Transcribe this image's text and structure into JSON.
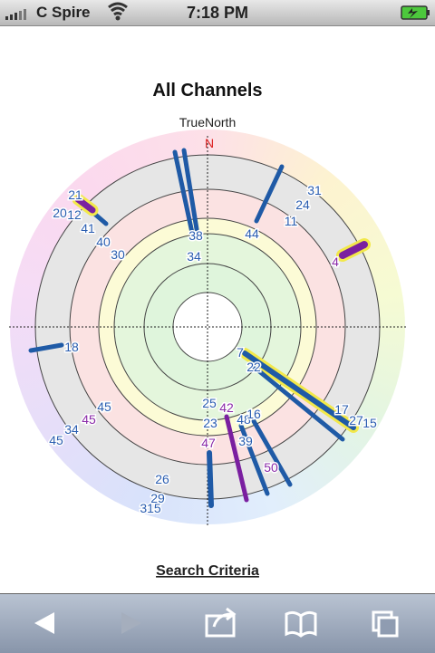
{
  "status_bar": {
    "carrier": "C Spire",
    "time": "7:18 PM"
  },
  "page": {
    "title": "All Channels",
    "compass_label": "TrueNorth",
    "north_marker": "N",
    "link": "Search Criteria"
  },
  "satellites": [
    {
      "label": "21",
      "color": "#2a5db0"
    },
    {
      "label": "12",
      "color": "#2a5db0"
    },
    {
      "label": "20",
      "color": "#2a5db0"
    },
    {
      "label": "41",
      "color": "#2a5db0"
    },
    {
      "label": "40",
      "color": "#2a5db0"
    },
    {
      "label": "30",
      "color": "#2a5db0"
    },
    {
      "label": "38",
      "color": "#2a5db0"
    },
    {
      "label": "34",
      "color": "#2a5db0"
    },
    {
      "label": "44",
      "color": "#2a5db0"
    },
    {
      "label": "31",
      "color": "#2a5db0"
    },
    {
      "label": "24",
      "color": "#2a5db0"
    },
    {
      "label": "11",
      "color": "#2a5db0"
    },
    {
      "label": "4",
      "color": "#8a2aa8"
    },
    {
      "label": "18",
      "color": "#2a5db0"
    },
    {
      "label": "7",
      "color": "#2a5db0"
    },
    {
      "label": "22",
      "color": "#2a5db0"
    },
    {
      "label": "17",
      "color": "#2a5db0"
    },
    {
      "label": "27",
      "color": "#2a5db0"
    },
    {
      "label": "15",
      "color": "#2a5db0"
    },
    {
      "label": "25",
      "color": "#2a5db0"
    },
    {
      "label": "42",
      "color": "#8a2aa8"
    },
    {
      "label": "23",
      "color": "#2a5db0"
    },
    {
      "label": "48",
      "color": "#2a5db0"
    },
    {
      "label": "16",
      "color": "#2a5db0"
    },
    {
      "label": "39",
      "color": "#2a5db0"
    },
    {
      "label": "47",
      "color": "#8a2aa8"
    },
    {
      "label": "50",
      "color": "#8a2aa8"
    },
    {
      "label": "45",
      "color": "#2a5db0"
    },
    {
      "label": "45",
      "color": "#8a2aa8"
    },
    {
      "label": "34",
      "color": "#2a5db0"
    },
    {
      "label": "45",
      "color": "#2a5db0"
    },
    {
      "label": "26",
      "color": "#2a5db0"
    },
    {
      "label": "29",
      "color": "#2a5db0"
    },
    {
      "label": "315",
      "color": "#2a5db0"
    }
  ]
}
